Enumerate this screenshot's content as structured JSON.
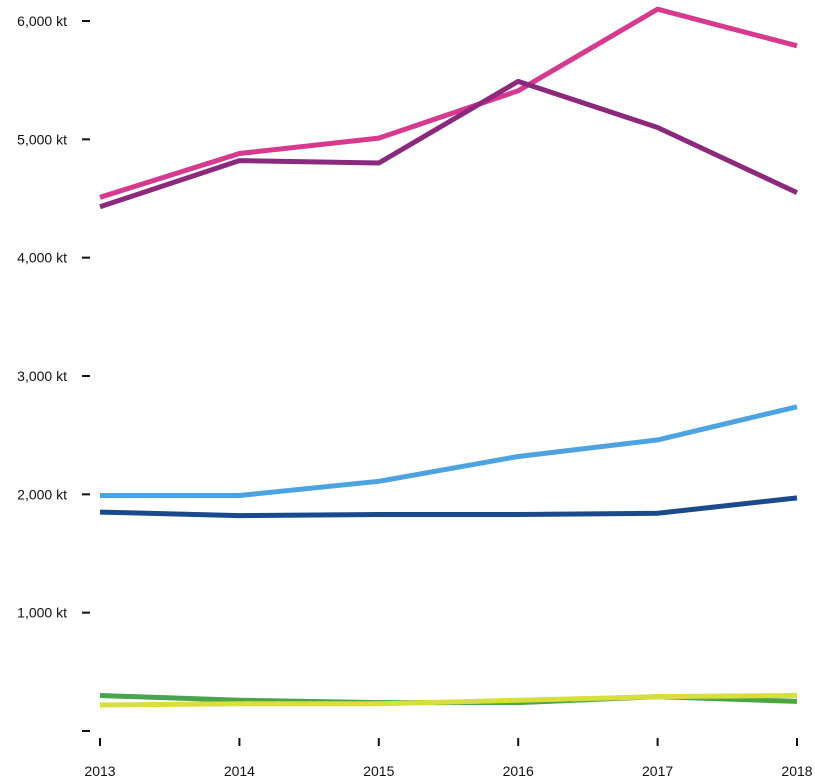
{
  "chart_data": {
    "type": "line",
    "title": "",
    "xlabel": "",
    "ylabel": "",
    "x": [
      2013,
      2014,
      2015,
      2016,
      2017,
      2018
    ],
    "x_tick_labels": [
      "2013",
      "2014",
      "2015",
      "2016",
      "2017",
      "2018"
    ],
    "y_ticks": [
      0,
      1000,
      2000,
      3000,
      4000,
      5000,
      6000
    ],
    "y_tick_labels": [
      "",
      "1,000 kt",
      "2,000 kt",
      "3,000 kt",
      "4,000 kt",
      "5,000 kt",
      "6,000 kt"
    ],
    "ylim": [
      0,
      6000
    ],
    "grid": false,
    "legend": "none",
    "series": [
      {
        "color": "#d63a8e",
        "values": [
          4510,
          4880,
          5010,
          5410,
          6100,
          5790
        ]
      },
      {
        "color": "#8b2a7d",
        "values": [
          4430,
          4820,
          4800,
          5490,
          5100,
          4550
        ]
      },
      {
        "color": "#4da3e0",
        "values": [
          1990,
          1990,
          2110,
          2320,
          2460,
          2740
        ]
      },
      {
        "color": "#1b4a8c",
        "values": [
          1850,
          1820,
          1830,
          1830,
          1840,
          1970
        ]
      },
      {
        "color": "#4aa44a",
        "values": [
          300,
          260,
          240,
          240,
          290,
          250
        ]
      },
      {
        "color": "#d7df3c",
        "values": [
          220,
          230,
          230,
          260,
          290,
          300
        ]
      }
    ]
  }
}
